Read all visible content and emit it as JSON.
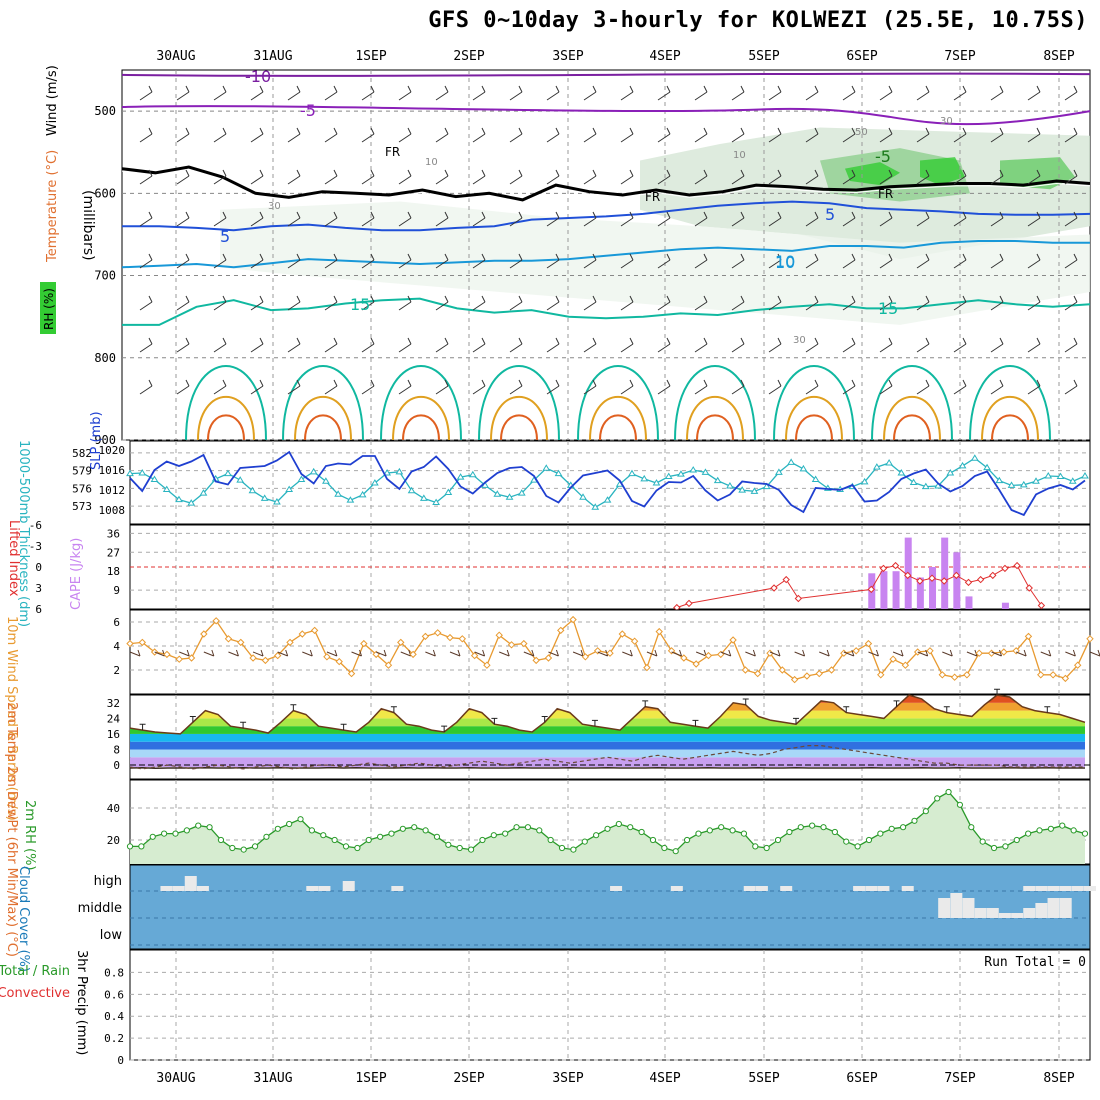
{
  "title": "GFS 0~10day 3-hourly for KOLWEZI (25.5E, 10.75S)",
  "chart_data": [
    {
      "panel": "upper-air",
      "type": "contour",
      "xdates": [
        "30AUG",
        "31AUG",
        "1SEP",
        "2SEP",
        "3SEP",
        "4SEP",
        "5SEP",
        "6SEP",
        "7SEP",
        "8SEP"
      ],
      "ylabel": "(millibars)",
      "legend": [
        "Wind (m/s)",
        "Temperature (°C)",
        "RH (%)"
      ],
      "yticks": [
        500,
        600,
        700,
        800,
        900
      ],
      "ylim": [
        900,
        450
      ],
      "contour_labels": {
        "temperature": [
          "-10",
          "-5",
          "5",
          "10",
          "15",
          "-5",
          "5",
          "10",
          "15"
        ],
        "freezing": "FR",
        "rh": [
          "10",
          "10",
          "30",
          "50",
          "30",
          "30"
        ]
      },
      "freezing_level_mb": [
        570,
        575,
        568,
        580,
        600,
        605,
        598,
        600,
        602,
        596,
        604,
        600,
        608,
        590,
        598,
        602,
        596,
        602,
        598,
        590,
        592,
        595,
        596,
        592,
        590,
        588,
        588,
        590,
        585,
        588
      ],
      "isotherm_5C_mb": [
        640,
        640,
        642,
        645,
        640,
        638,
        642,
        645,
        645,
        642,
        640,
        632,
        630,
        628,
        625,
        620,
        615,
        612,
        610,
        612,
        618,
        620,
        622,
        625,
        626,
        626,
        625
      ],
      "isotherm_10C_mb": [
        690,
        688,
        686,
        690,
        685,
        680,
        682,
        684,
        686,
        684,
        682,
        682,
        680,
        676,
        672,
        668,
        666,
        668,
        670,
        664,
        664,
        666,
        660,
        658,
        658,
        660,
        660
      ],
      "isotherm_15C_mb": [
        760,
        760,
        738,
        730,
        742,
        740,
        734,
        730,
        728,
        740,
        745,
        742,
        750,
        752,
        750,
        746,
        748,
        742,
        738,
        735,
        740,
        740,
        735,
        730,
        735,
        738,
        735
      ]
    },
    {
      "panel": "thickness-slp",
      "type": "line",
      "series": [
        {
          "name": "1000-500mb Thickness (dm)",
          "color": "#2ab4c0",
          "values": [
            578.5,
            578.6,
            577.5,
            575.8,
            574.1,
            573.5,
            575.2,
            577.6,
            578.5,
            577.4,
            575.6,
            574.3,
            573.7,
            575.8,
            577.5,
            578.8,
            577.2,
            575.0,
            574.0,
            574.9,
            576.9,
            578.6,
            578.8,
            575.6,
            574.3,
            573.6,
            575.3,
            577.9,
            578.3,
            576.5,
            575.0,
            574.5,
            575.2,
            577.4,
            579.4,
            578.5,
            576.5,
            574.5,
            572.8,
            574.0,
            576.7,
            578.5,
            577.6,
            576.9,
            578.0,
            578.4,
            579.1,
            578.7,
            577.3,
            576.4,
            575.7,
            575.5,
            576.3,
            578.7,
            580.4,
            579.3,
            577.5,
            576.0,
            575.8,
            576.3,
            577.1,
            579.6,
            580.3,
            578.6,
            577.0,
            576.3,
            576.4,
            578.6,
            579.8,
            581.1,
            579.5,
            577.3,
            576.5,
            576.6,
            577.2,
            578.1,
            578.0,
            577.2,
            578.1
          ]
        },
        {
          "name": "SLP (mb)",
          "color": "#1f3fd0",
          "values": [
            1014.4,
            1011.8,
            1016.0,
            1017.7,
            1016.8,
            1017.7,
            1019.0,
            1013.7,
            1013.1,
            1016.4,
            1016.6,
            1016.8,
            1017.9,
            1019.6,
            1015.2,
            1013.3,
            1016.8,
            1017.3,
            1017.1,
            1018.8,
            1018.8,
            1014.2,
            1012.2,
            1015.7,
            1016.6,
            1018.7,
            1016.2,
            1012.7,
            1011.3,
            1013.5,
            1015.4,
            1016.4,
            1016.6,
            1014.8,
            1010.8,
            1009.5,
            1012.5,
            1014.9,
            1015.4,
            1015.9,
            1013.9,
            1009.8,
            1008.7,
            1011.9,
            1013.6,
            1013.5,
            1014.8,
            1011.9,
            1009.9,
            1011.1,
            1013.7,
            1013.4,
            1013.2,
            1012.0,
            1009.0,
            1007.6,
            1012.4,
            1012.2,
            1012.0,
            1013.0,
            1009.7,
            1009.9,
            1011.6,
            1014.2,
            1015.3,
            1016.1,
            1013.3,
            1011.7,
            1012.8,
            1014.8,
            1015.7,
            1012.0,
            1008.0,
            1007.0,
            1011.1,
            1012.3,
            1013.0,
            1012.1,
            1013.9
          ]
        }
      ],
      "left_yticks": [
        "582",
        "579",
        "576",
        "573"
      ],
      "right_yticks": [
        "1020",
        "1016",
        "1012",
        "1008"
      ],
      "ylabel_left": "1000-500mb Thickness (dm)",
      "ylabel_right": "SLP (mb)"
    },
    {
      "panel": "cape-li",
      "type": "bar",
      "series": [
        {
          "name": "CAPE (J/kg)",
          "color": "#c884f0",
          "values_by_step": {
            "61": 17,
            "62": 18,
            "63": 18,
            "64": 34,
            "65": 15,
            "66": 20,
            "67": 34,
            "68": 27,
            "69": 6,
            "72": 3
          }
        },
        {
          "name": "Lifted Index",
          "color": "#e03030",
          "values_by_step": {
            "45": 5.8,
            "46": 5.2,
            "53": 3.0,
            "54": 1.8,
            "55": 4.5,
            "61": 3.2,
            "62": 0.2,
            "63": -0.2,
            "64": 1.2,
            "65": 2.0,
            "66": 1.6,
            "67": 2.0,
            "68": 1.2,
            "69": 2.2,
            "70": 1.8,
            "71": 1.2,
            "72": 0.2,
            "73": -0.2,
            "74": 3.0,
            "75": 5.5
          }
        }
      ],
      "left_yticks": [
        "-6",
        "-3",
        "0",
        "3",
        "6"
      ],
      "right_yticks": [
        "36",
        "27",
        "18",
        "9"
      ],
      "ylabel_left": "Lifted Index",
      "ylabel_right": "CAPE (J/kg)"
    },
    {
      "panel": "wind10m",
      "type": "line",
      "series": [
        {
          "name": "10m Wind Speed (m/s)",
          "color": "#e89a30",
          "values": [
            4.2,
            4.3,
            3.5,
            3.3,
            2.9,
            3.0,
            5.0,
            6.1,
            4.6,
            4.3,
            3.0,
            2.8,
            3.2,
            4.3,
            5.0,
            5.3,
            3.1,
            2.7,
            1.7,
            4.2,
            3.3,
            2.4,
            4.3,
            3.3,
            4.8,
            5.1,
            4.7,
            4.6,
            3.2,
            2.4,
            4.9,
            4.1,
            4.2,
            2.8,
            3.0,
            5.3,
            6.2,
            3.1,
            3.6,
            3.4,
            5.0,
            4.4,
            2.2,
            5.2,
            3.6,
            3.0,
            2.5,
            3.2,
            3.3,
            4.5,
            2.0,
            1.7,
            3.4,
            2.0,
            1.2,
            1.5,
            1.7,
            2.0,
            3.4,
            3.6,
            4.2,
            1.6,
            2.9,
            2.4,
            3.5,
            3.6,
            1.6,
            1.4,
            1.6,
            3.4,
            3.4,
            3.5,
            3.6,
            4.8,
            1.6,
            1.6,
            1.3,
            2.4,
            4.6
          ]
        }
      ],
      "yticks": [
        "6",
        "4",
        "2"
      ],
      "ylim": [
        0,
        7
      ],
      "ylabel": "10m Wind Speed & Barbs (m/s)"
    },
    {
      "panel": "temp2m",
      "type": "area",
      "series": [
        {
          "name": "2m Temp (°C)",
          "values": [
            19,
            18,
            17,
            16.5,
            16,
            22,
            28,
            26,
            20,
            19,
            18,
            16.5,
            22,
            28,
            26,
            20,
            19,
            18,
            17,
            22,
            29,
            27,
            21,
            20,
            18,
            17,
            22,
            29,
            27,
            21,
            20,
            18,
            17,
            22,
            29,
            27,
            21,
            20,
            19,
            18,
            24,
            30,
            29,
            22,
            21,
            20,
            19,
            25,
            32,
            31,
            25,
            23,
            22,
            21,
            27,
            33,
            32,
            27,
            26,
            25,
            24,
            30,
            36,
            34,
            29,
            27,
            26,
            25,
            31,
            36,
            35,
            30,
            28,
            27,
            26,
            24,
            22
          ]
        },
        {
          "name": "2m DewPt (°C)",
          "values": [
            -1.5,
            -1.4,
            -1.6,
            -1.5,
            -1.5,
            -1.5,
            -1.4,
            -1.5,
            -1.5,
            -1.4,
            -1.5,
            -1.5,
            -1.4,
            -1.5,
            -1.5,
            -1.5,
            -1.3,
            -1.5,
            -1.4,
            -1.5,
            -1.5,
            -1.5,
            -1.4,
            -1.5,
            -1.4,
            -1.5,
            -1.5,
            -1.4,
            -1.5,
            -1.5,
            -1.5,
            -1.4,
            -1.5,
            -1.5,
            -1.5,
            -1.4,
            -1.5,
            -1.5,
            -1.4,
            -1.5,
            -1.5,
            -1.5,
            -1.4,
            -1.5,
            -1.5,
            -1.5,
            -1.4,
            -1.5,
            -1.5,
            -1.5,
            -1.4,
            -1.5,
            -1.5,
            -1.4,
            -1.5,
            -1.5,
            -1.5,
            -1.5,
            -1.5,
            -1.4,
            -1.5,
            -1.5,
            -1.5,
            -1.4,
            -1.5,
            -1.5,
            -1.4,
            -1.5,
            -1.5,
            -1.5,
            -1.4,
            -1.5,
            -1.5,
            -1.4,
            -1.5,
            -1.5,
            -1.5
          ]
        },
        {
          "name": "dewpoint-dashed",
          "values": [
            -1,
            -2,
            -1,
            0,
            -1,
            -2,
            -1,
            0,
            -1,
            -2,
            -1,
            0,
            -1,
            -2,
            -1,
            0,
            0,
            -1,
            0,
            1,
            0,
            -1,
            0,
            1,
            0,
            -1,
            0,
            1,
            2,
            1,
            0,
            1,
            2,
            3,
            2,
            1,
            2,
            3,
            4,
            3,
            2,
            4,
            5,
            4,
            3,
            4,
            5,
            6,
            7,
            6,
            5,
            6,
            8,
            9,
            10,
            10,
            9,
            8,
            7,
            6,
            5,
            4,
            3,
            2,
            1,
            1,
            0,
            0,
            0,
            0,
            -1,
            -1,
            -1,
            -1,
            -1,
            -1,
            -1
          ]
        }
      ],
      "yticks": [
        "32",
        "24",
        "16",
        "8",
        "0"
      ],
      "ylabel": "2m Temp 2m DewPt (6hr Min/Max) (°C)"
    },
    {
      "panel": "rh2m",
      "type": "area",
      "series": [
        {
          "name": "2m RH (%)",
          "color": "#2a9a2a",
          "values": [
            16,
            16,
            22,
            24,
            24,
            26,
            29,
            28,
            20,
            15,
            14,
            16,
            22,
            27,
            30,
            33,
            26,
            23,
            20,
            16,
            15,
            20,
            22,
            24,
            27,
            28,
            26,
            22,
            17,
            15,
            14,
            20,
            23,
            24,
            28,
            28,
            26,
            20,
            15,
            14,
            19,
            23,
            27,
            30,
            28,
            25,
            20,
            15,
            13,
            20,
            24,
            26,
            28,
            26,
            24,
            16,
            15,
            20,
            25,
            28,
            29,
            28,
            25,
            19,
            16,
            20,
            24,
            27,
            28,
            32,
            38,
            46,
            50,
            42,
            28,
            19,
            15,
            16,
            20,
            24,
            26,
            27,
            29,
            26,
            24
          ]
        }
      ],
      "yticks": [
        "40",
        "20"
      ],
      "ylabel": "2m RH (%)"
    },
    {
      "panel": "cloud",
      "type": "bar",
      "yticks": [
        "high",
        "middle",
        "low"
      ],
      "ylabel": "Cloud Cover (%)",
      "series": [
        {
          "name": "high",
          "values_by_step": {
            "3": 1,
            "4": 1,
            "5": 3,
            "6": 1,
            "15": 1,
            "16": 1,
            "18": 2,
            "22": 1,
            "40": 1,
            "45": 1,
            "51": 1,
            "52": 1,
            "54": 1,
            "60": 1,
            "61": 1,
            "62": 1,
            "64": 1,
            "74": 1,
            "75": 1,
            "76": 1,
            "77": 1,
            "78": 1,
            "79": 1
          }
        },
        {
          "name": "middle",
          "values_by_step": {
            "67": 4,
            "68": 5,
            "69": 4,
            "70": 2,
            "71": 2,
            "72": 1,
            "73": 1,
            "74": 2,
            "75": 3,
            "76": 4,
            "77": 4,
            "84": 1,
            "85": 4,
            "86": 1,
            "87": 4,
            "88": 4,
            "89": 1
          }
        }
      ]
    },
    {
      "panel": "precip",
      "type": "bar",
      "yticks": [
        "0.8",
        "0.6",
        "0.4",
        "0.2",
        "0"
      ],
      "ylim": [
        0,
        1
      ],
      "ylabel": "3hr Precip (mm)",
      "legend": [
        "Total / Rain",
        "Convective"
      ],
      "run_total": "Run Total = 0"
    }
  ]
}
